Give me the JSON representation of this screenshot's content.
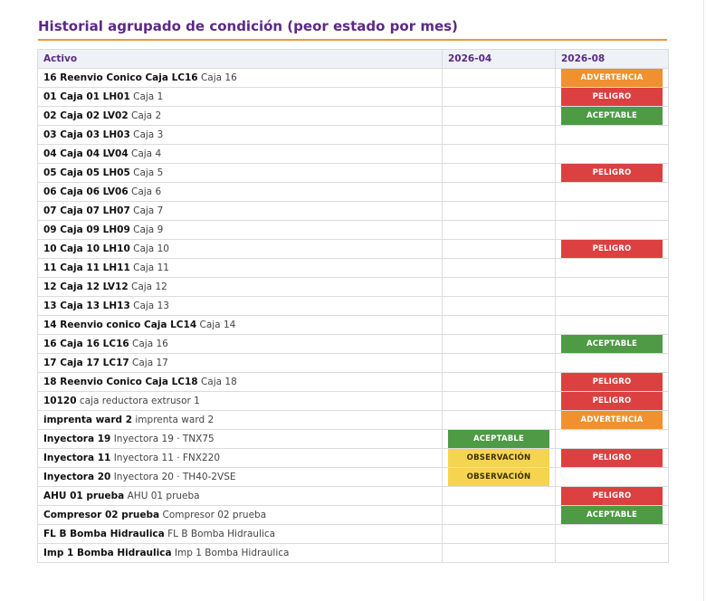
{
  "title": "Historial agrupado de condición (peor estado por mes)",
  "columns": {
    "asset": "Activo",
    "month1": "2026-04",
    "month2": "2026-08"
  },
  "status_colors": {
    "ADVERTENCIA": "#f0902e",
    "PELIGRO": "#dc4040",
    "ACEPTABLE": "#4e9a45",
    "OBSERVACIÓN": "#f5d44f"
  },
  "rows": [
    {
      "code": "16 Reenvio Conico Caja LC16",
      "desc": "Caja 16",
      "m1": "",
      "m2": "ADVERTENCIA"
    },
    {
      "code": "01 Caja 01 LH01",
      "desc": "Caja 1",
      "m1": "",
      "m2": "PELIGRO"
    },
    {
      "code": "02 Caja 02 LV02",
      "desc": "Caja 2",
      "m1": "",
      "m2": "ACEPTABLE"
    },
    {
      "code": "03 Caja 03 LH03",
      "desc": "Caja 3",
      "m1": "",
      "m2": ""
    },
    {
      "code": "04 Caja 04 LV04",
      "desc": "Caja 4",
      "m1": "",
      "m2": ""
    },
    {
      "code": "05 Caja 05 LH05",
      "desc": "Caja 5",
      "m1": "",
      "m2": "PELIGRO"
    },
    {
      "code": "06 Caja 06 LV06",
      "desc": "Caja 6",
      "m1": "",
      "m2": ""
    },
    {
      "code": "07 Caja 07 LH07",
      "desc": "Caja 7",
      "m1": "",
      "m2": ""
    },
    {
      "code": "09 Caja 09 LH09",
      "desc": "Caja 9",
      "m1": "",
      "m2": ""
    },
    {
      "code": "10 Caja 10 LH10",
      "desc": "Caja 10",
      "m1": "",
      "m2": "PELIGRO"
    },
    {
      "code": "11 Caja 11 LH11",
      "desc": "Caja 11",
      "m1": "",
      "m2": ""
    },
    {
      "code": "12 Caja 12 LV12",
      "desc": "Caja 12",
      "m1": "",
      "m2": ""
    },
    {
      "code": "13 Caja 13 LH13",
      "desc": "Caja 13",
      "m1": "",
      "m2": ""
    },
    {
      "code": "14 Reenvio conico Caja LC14",
      "desc": "Caja 14",
      "m1": "",
      "m2": ""
    },
    {
      "code": "16 Caja 16 LC16",
      "desc": "Caja 16",
      "m1": "",
      "m2": "ACEPTABLE"
    },
    {
      "code": "17 Caja 17 LC17",
      "desc": "Caja 17",
      "m1": "",
      "m2": ""
    },
    {
      "code": "18 Reenvio Conico Caja LC18",
      "desc": "Caja 18",
      "m1": "",
      "m2": "PELIGRO"
    },
    {
      "code": "10120",
      "desc": "caja reductora extrusor 1",
      "m1": "",
      "m2": "PELIGRO"
    },
    {
      "code": "imprenta ward 2",
      "desc": "imprenta ward 2",
      "m1": "",
      "m2": "ADVERTENCIA"
    },
    {
      "code": "Inyectora 19",
      "desc": "Inyectora 19 · TNX75",
      "m1": "ACEPTABLE",
      "m2": ""
    },
    {
      "code": "Inyectora 11",
      "desc": "Inyectora 11 · FNX220",
      "m1": "OBSERVACIÓN",
      "m2": "PELIGRO"
    },
    {
      "code": "Inyectora 20",
      "desc": "Inyectora 20 · TH40-2VSE",
      "m1": "OBSERVACIÓN",
      "m2": ""
    },
    {
      "code": "AHU 01 prueba",
      "desc": "AHU 01 prueba",
      "m1": "",
      "m2": "PELIGRO"
    },
    {
      "code": "Compresor 02 prueba",
      "desc": "Compresor 02 prueba",
      "m1": "",
      "m2": "ACEPTABLE"
    },
    {
      "code": "FL B Bomba Hidraulica",
      "desc": "FL B Bomba Hidraulica",
      "m1": "",
      "m2": ""
    },
    {
      "code": "Imp 1 Bomba Hidraulica",
      "desc": "Imp 1 Bomba Hidraulica",
      "m1": "",
      "m2": ""
    }
  ]
}
